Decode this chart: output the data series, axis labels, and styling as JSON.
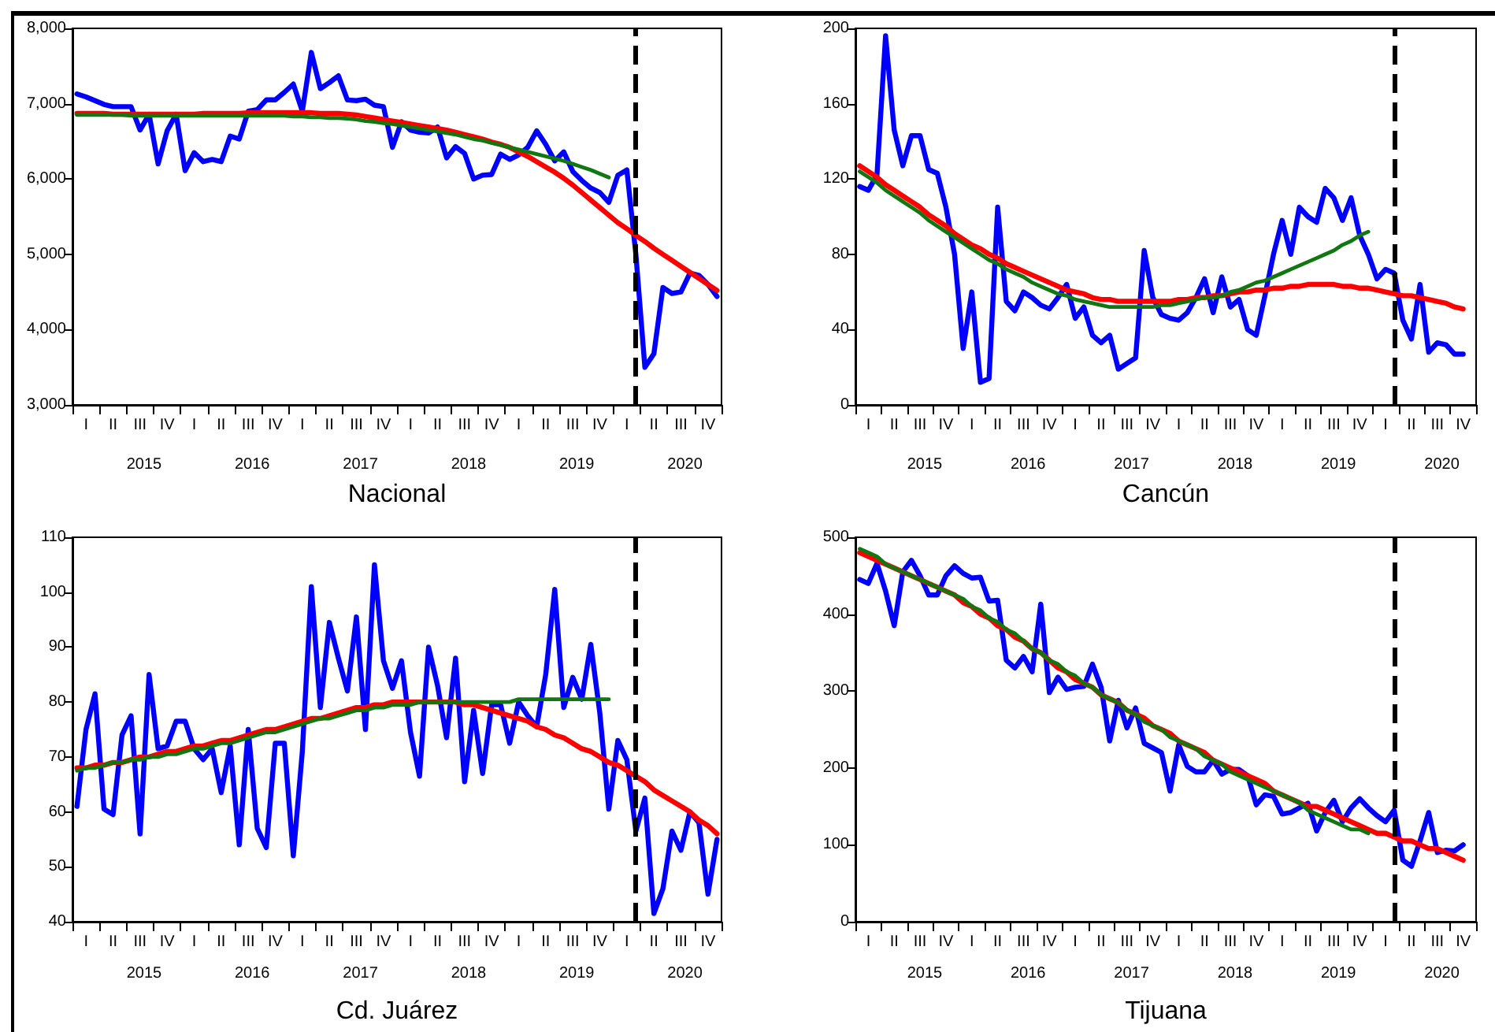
{
  "chart_data": [
    {
      "type": "line",
      "xlabel": "Nacional",
      "grid": false,
      "marker": "none",
      "line_style": "solid",
      "categories": [
        null,
        "I",
        null,
        null,
        "II",
        null,
        null,
        "III",
        null,
        null,
        "IV",
        null,
        null,
        "I",
        null,
        null,
        "II",
        null,
        null,
        "III",
        null,
        null,
        "IV",
        null,
        null,
        "I",
        null,
        null,
        "II",
        null,
        null,
        "III",
        null,
        null,
        "IV",
        null,
        null,
        "I",
        null,
        null,
        "II",
        null,
        null,
        "III",
        null,
        null,
        "IV",
        null,
        null,
        "I",
        null,
        null,
        "II",
        null,
        null,
        "III",
        null,
        null,
        "IV",
        null,
        null,
        "I",
        null,
        null,
        "II",
        null,
        null,
        "III",
        null,
        null,
        "IV",
        null
      ],
      "annotations": [
        "2015",
        "2016",
        "2017",
        "2018",
        "2019",
        "2020"
      ],
      "ylim": [
        3000,
        8000
      ],
      "yticks": [
        {
          "value": 3000,
          "label": "3,000"
        },
        {
          "value": 4000,
          "label": "4,000"
        },
        {
          "value": 5000,
          "label": "5,000"
        },
        {
          "value": 6000,
          "label": "6,000"
        },
        {
          "value": 7000,
          "label": "7,000"
        },
        {
          "value": 8000,
          "label": "8,000"
        }
      ],
      "series": [
        {
          "color": "#0000ff",
          "values": [
            7130,
            7090,
            7040,
            6990,
            6960,
            6960,
            6960,
            6650,
            6860,
            6200,
            6640,
            6860,
            6110,
            6350,
            6230,
            6260,
            6230,
            6570,
            6530,
            6900,
            6920,
            7050,
            7050,
            7150,
            7260,
            6900,
            7680,
            7200,
            7280,
            7370,
            7050,
            7040,
            7060,
            6980,
            6960,
            6420,
            6760,
            6650,
            6620,
            6610,
            6690,
            6280,
            6430,
            6340,
            6000,
            6050,
            6060,
            6330,
            6260,
            6320,
            6420,
            6640,
            6460,
            6240,
            6360,
            6100,
            5980,
            5880,
            5820,
            5690,
            6050,
            6120,
            5000,
            3500,
            3680,
            4560,
            4480,
            4500,
            4750,
            4720,
            4600,
            4440
          ]
        },
        {
          "color": "#ff0000",
          "values": [
            6870,
            6870,
            6870,
            6870,
            6860,
            6860,
            6860,
            6860,
            6860,
            6860,
            6860,
            6860,
            6860,
            6860,
            6870,
            6870,
            6870,
            6870,
            6870,
            6880,
            6880,
            6880,
            6880,
            6880,
            6880,
            6880,
            6880,
            6870,
            6870,
            6870,
            6860,
            6850,
            6830,
            6810,
            6790,
            6770,
            6750,
            6730,
            6710,
            6690,
            6670,
            6650,
            6620,
            6590,
            6560,
            6530,
            6490,
            6460,
            6420,
            6360,
            6300,
            6230,
            6160,
            6090,
            6010,
            5920,
            5820,
            5720,
            5620,
            5520,
            5420,
            5340,
            5250,
            5170,
            5080,
            5000,
            4920,
            4840,
            4760,
            4680,
            4600,
            4520
          ]
        },
        {
          "color": "#117711",
          "values": [
            6850,
            6850,
            6850,
            6850,
            6850,
            6850,
            6840,
            6840,
            6840,
            6840,
            6840,
            6840,
            6840,
            6840,
            6840,
            6840,
            6840,
            6840,
            6840,
            6840,
            6840,
            6840,
            6840,
            6840,
            6830,
            6830,
            6820,
            6820,
            6810,
            6810,
            6800,
            6790,
            6770,
            6760,
            6740,
            6730,
            6710,
            6690,
            6670,
            6650,
            6630,
            6610,
            6590,
            6560,
            6530,
            6510,
            6480,
            6450,
            6420,
            6390,
            6360,
            6330,
            6300,
            6270,
            6240,
            6200,
            6160,
            6120,
            6070,
            6020,
            null,
            null,
            null,
            null,
            null,
            null,
            null,
            null,
            null,
            null,
            null,
            null
          ]
        }
      ]
    },
    {
      "type": "line",
      "xlabel": "Cancún",
      "grid": false,
      "marker": "none",
      "line_style": "solid",
      "categories": [
        null,
        "I",
        null,
        null,
        "II",
        null,
        null,
        "III",
        null,
        null,
        "IV",
        null,
        null,
        "I",
        null,
        null,
        "II",
        null,
        null,
        "III",
        null,
        null,
        "IV",
        null,
        null,
        "I",
        null,
        null,
        "II",
        null,
        null,
        "III",
        null,
        null,
        "IV",
        null,
        null,
        "I",
        null,
        null,
        "II",
        null,
        null,
        "III",
        null,
        null,
        "IV",
        null,
        null,
        "I",
        null,
        null,
        "II",
        null,
        null,
        "III",
        null,
        null,
        "IV",
        null,
        null,
        "I",
        null,
        null,
        "II",
        null,
        null,
        "III",
        null,
        null,
        "IV",
        null
      ],
      "annotations": [
        "2015",
        "2016",
        "2017",
        "2018",
        "2019",
        "2020"
      ],
      "ylim": [
        0,
        200
      ],
      "yticks": [
        0,
        40,
        80,
        120,
        160,
        200
      ],
      "series": [
        {
          "color": "#0000ff",
          "values": [
            116,
            114,
            122,
            196,
            146,
            127,
            143,
            143,
            125,
            123,
            105,
            80,
            30,
            60,
            12,
            14,
            105,
            55,
            50,
            60,
            57,
            53,
            51,
            57,
            64,
            46,
            52,
            37,
            33,
            37,
            19,
            22,
            25,
            82,
            57,
            48,
            46,
            45,
            49,
            57,
            67,
            49,
            68,
            52,
            56,
            40,
            37,
            58,
            80,
            98,
            80,
            105,
            100,
            97,
            115,
            110,
            98,
            110,
            90,
            80,
            67,
            72,
            70,
            45,
            35,
            64,
            28,
            33,
            32,
            27,
            27,
            null
          ]
        },
        {
          "color": "#ff0000",
          "values": [
            127,
            124,
            121,
            117,
            114,
            111,
            108,
            105,
            101,
            98,
            95,
            91,
            88,
            85,
            83,
            80,
            78,
            75,
            73,
            71,
            69,
            67,
            65,
            63,
            61,
            60,
            59,
            57,
            56,
            56,
            55,
            55,
            55,
            55,
            55,
            55,
            55,
            56,
            56,
            57,
            57,
            58,
            58,
            59,
            60,
            60,
            61,
            61,
            62,
            62,
            63,
            63,
            64,
            64,
            64,
            64,
            63,
            63,
            62,
            62,
            61,
            60,
            59,
            58,
            58,
            57,
            56,
            55,
            54,
            52,
            51,
            null
          ]
        },
        {
          "color": "#117711",
          "values": [
            124,
            121,
            118,
            114,
            111,
            108,
            105,
            102,
            98,
            95,
            92,
            89,
            86,
            83,
            80,
            77,
            75,
            72,
            70,
            68,
            65,
            63,
            61,
            59,
            58,
            56,
            55,
            54,
            53,
            52,
            52,
            52,
            52,
            52,
            52,
            53,
            53,
            54,
            55,
            56,
            57,
            57,
            58,
            60,
            61,
            63,
            65,
            66,
            68,
            70,
            72,
            74,
            76,
            78,
            80,
            82,
            85,
            87,
            90,
            92,
            null,
            null,
            null,
            null,
            null,
            null,
            null,
            null,
            null,
            null,
            null,
            null
          ]
        }
      ]
    },
    {
      "type": "line",
      "xlabel": "Cd. Juárez",
      "grid": false,
      "marker": "none",
      "line_style": "solid",
      "categories": [
        null,
        "I",
        null,
        null,
        "II",
        null,
        null,
        "III",
        null,
        null,
        "IV",
        null,
        null,
        "I",
        null,
        null,
        "II",
        null,
        null,
        "III",
        null,
        null,
        "IV",
        null,
        null,
        "I",
        null,
        null,
        "II",
        null,
        null,
        "III",
        null,
        null,
        "IV",
        null,
        null,
        "I",
        null,
        null,
        "II",
        null,
        null,
        "III",
        null,
        null,
        "IV",
        null,
        null,
        "I",
        null,
        null,
        "II",
        null,
        null,
        "III",
        null,
        null,
        "IV",
        null,
        null,
        "I",
        null,
        null,
        "II",
        null,
        null,
        "III",
        null,
        null,
        "IV",
        null
      ],
      "annotations": [
        "2015",
        "2016",
        "2017",
        "2018",
        "2019",
        "2020"
      ],
      "ylim": [
        40,
        110
      ],
      "yticks": [
        40,
        50,
        60,
        70,
        80,
        90,
        100,
        110
      ],
      "series": [
        {
          "color": "#0000ff",
          "values": [
            61,
            75,
            81.5,
            60.5,
            59.5,
            74,
            77.5,
            56,
            85,
            71.5,
            72,
            76.5,
            76.5,
            71.5,
            69.5,
            71.5,
            63.5,
            72,
            54,
            75,
            57,
            53.5,
            72.5,
            72.5,
            52,
            71,
            101,
            79,
            94.5,
            88,
            82,
            95.5,
            75,
            105,
            87.5,
            82.5,
            87.5,
            74.5,
            66.5,
            90,
            83,
            73.5,
            88,
            65.5,
            78.5,
            67,
            79.5,
            79.5,
            72.5,
            80,
            77.5,
            75.5,
            85,
            100.5,
            79,
            84.5,
            80.5,
            90.5,
            78,
            60.5,
            73,
            69.5,
            56.5,
            62.5,
            41.5,
            46,
            56.5,
            53,
            60,
            58,
            45,
            55
          ]
        },
        {
          "color": "#ff0000",
          "values": [
            68,
            68,
            68.5,
            68.5,
            69,
            69,
            69.5,
            70,
            70,
            70.5,
            71,
            71,
            71.5,
            72,
            72,
            72.5,
            73,
            73,
            73.5,
            74,
            74.5,
            75,
            75,
            75.5,
            76,
            76.5,
            77,
            77,
            77.5,
            78,
            78.5,
            79,
            79,
            79.5,
            79.5,
            80,
            80,
            80,
            80,
            80,
            80,
            80,
            80,
            79.5,
            79.5,
            79,
            78.5,
            78,
            77.5,
            77,
            76.5,
            75.5,
            75,
            74,
            73.5,
            72.5,
            71.5,
            71,
            70,
            69,
            68.5,
            67.5,
            66.5,
            65.5,
            64,
            63,
            62,
            61,
            60,
            58.5,
            57.5,
            56
          ]
        },
        {
          "color": "#117711",
          "values": [
            67.5,
            68,
            68,
            68.5,
            69,
            69,
            69.5,
            69.5,
            70,
            70,
            70.5,
            70.5,
            71,
            71.5,
            71.5,
            72,
            72.5,
            72.5,
            73,
            73.5,
            74,
            74.5,
            74.5,
            75,
            75.5,
            76,
            76.5,
            77,
            77,
            77.5,
            78,
            78.5,
            78.5,
            79,
            79,
            79.5,
            79.5,
            79.5,
            80,
            80,
            80,
            80,
            80,
            80,
            80,
            80,
            80,
            80,
            80,
            80.5,
            80.5,
            80.5,
            80.5,
            80.5,
            80.5,
            80.5,
            80.5,
            80.5,
            80.5,
            80.5,
            null,
            null,
            null,
            null,
            null,
            null,
            null,
            null,
            null,
            null,
            null,
            null
          ]
        }
      ]
    },
    {
      "type": "line",
      "xlabel": "Tijuana",
      "grid": false,
      "marker": "none",
      "line_style": "solid",
      "categories": [
        null,
        "I",
        null,
        null,
        "II",
        null,
        null,
        "III",
        null,
        null,
        "IV",
        null,
        null,
        "I",
        null,
        null,
        "II",
        null,
        null,
        "III",
        null,
        null,
        "IV",
        null,
        null,
        "I",
        null,
        null,
        "II",
        null,
        null,
        "III",
        null,
        null,
        "IV",
        null,
        null,
        "I",
        null,
        null,
        "II",
        null,
        null,
        "III",
        null,
        null,
        "IV",
        null,
        null,
        "I",
        null,
        null,
        "II",
        null,
        null,
        "III",
        null,
        null,
        "IV",
        null,
        null,
        "I",
        null,
        null,
        "II",
        null,
        null,
        "III",
        null,
        null,
        "IV",
        null
      ],
      "annotations": [
        "2015",
        "2016",
        "2017",
        "2018",
        "2019",
        "2020"
      ],
      "ylim": [
        0,
        500
      ],
      "yticks": [
        0,
        100,
        200,
        300,
        400,
        500
      ],
      "series": [
        {
          "color": "#0000ff",
          "values": [
            445,
            440,
            466,
            430,
            385,
            455,
            470,
            450,
            425,
            425,
            450,
            463,
            453,
            447,
            448,
            417,
            418,
            340,
            330,
            345,
            325,
            413,
            298,
            318,
            302,
            305,
            306,
            335,
            305,
            235,
            288,
            252,
            278,
            232,
            226,
            220,
            170,
            230,
            202,
            195,
            195,
            210,
            192,
            198,
            198,
            190,
            152,
            165,
            163,
            140,
            142,
            148,
            154,
            118,
            142,
            158,
            130,
            148,
            160,
            148,
            138,
            130,
            145,
            80,
            72,
            105,
            142,
            90,
            93,
            92,
            100,
            null
          ]
        },
        {
          "color": "#ff0000",
          "values": [
            480,
            475,
            470,
            465,
            460,
            455,
            450,
            445,
            440,
            435,
            430,
            425,
            415,
            410,
            400,
            395,
            385,
            380,
            370,
            365,
            355,
            350,
            340,
            330,
            325,
            315,
            310,
            305,
            295,
            290,
            285,
            275,
            270,
            265,
            255,
            250,
            245,
            235,
            230,
            225,
            220,
            210,
            205,
            200,
            195,
            190,
            185,
            180,
            170,
            165,
            160,
            155,
            150,
            150,
            145,
            140,
            135,
            130,
            125,
            120,
            115,
            115,
            110,
            105,
            105,
            100,
            95,
            95,
            90,
            85,
            80,
            null
          ]
        },
        {
          "color": "#117711",
          "values": [
            485,
            480,
            475,
            465,
            460,
            455,
            450,
            445,
            440,
            435,
            430,
            425,
            420,
            410,
            405,
            395,
            390,
            380,
            375,
            365,
            355,
            350,
            340,
            335,
            325,
            320,
            310,
            305,
            295,
            290,
            285,
            275,
            270,
            260,
            255,
            250,
            240,
            235,
            230,
            225,
            215,
            210,
            205,
            195,
            190,
            185,
            180,
            175,
            170,
            165,
            160,
            155,
            145,
            140,
            135,
            130,
            125,
            120,
            120,
            115,
            null,
            null,
            null,
            null,
            null,
            null,
            null,
            null,
            null,
            null,
            null,
            null
          ]
        }
      ]
    }
  ]
}
